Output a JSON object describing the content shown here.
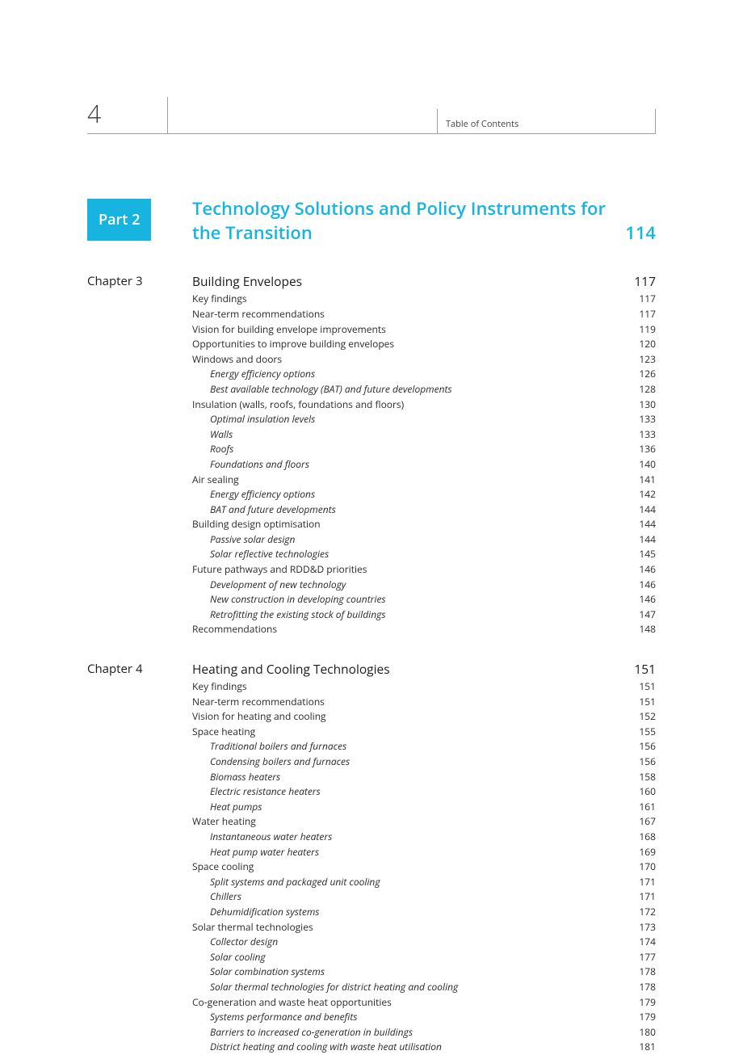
{
  "header": {
    "page_number": "4",
    "label": "Table of Contents"
  },
  "part": {
    "badge": "Part 2",
    "title": "Technology Solutions and Policy Instruments for the Transition",
    "page": "114"
  },
  "chapters": [
    {
      "label": "Chapter 3",
      "title": "Building Envelopes",
      "page": "117",
      "entries": [
        {
          "lvl": 0,
          "label": "Key findings",
          "page": "117"
        },
        {
          "lvl": 0,
          "label": "Near-term recommendations",
          "page": "117"
        },
        {
          "lvl": 0,
          "label": "Vision for building envelope improvements",
          "page": "119"
        },
        {
          "lvl": 0,
          "label": "Opportunities to improve building envelopes",
          "page": "120"
        },
        {
          "lvl": 0,
          "label": "Windows and doors",
          "page": "123"
        },
        {
          "lvl": 1,
          "label": "Energy efficiency options",
          "page": "126"
        },
        {
          "lvl": 1,
          "label": "Best available technology (BAT) and future developments",
          "page": "128"
        },
        {
          "lvl": 0,
          "label": "Insulation (walls, roofs, foundations and floors)",
          "page": "130"
        },
        {
          "lvl": 1,
          "label": "Optimal insulation levels",
          "page": "133"
        },
        {
          "lvl": 1,
          "label": "Walls",
          "page": "133"
        },
        {
          "lvl": 1,
          "label": "Roofs",
          "page": "136"
        },
        {
          "lvl": 1,
          "label": "Foundations and floors",
          "page": "140"
        },
        {
          "lvl": 0,
          "label": "Air sealing",
          "page": "141"
        },
        {
          "lvl": 1,
          "label": "Energy efficiency options",
          "page": "142"
        },
        {
          "lvl": 1,
          "label": "BAT and future developments",
          "page": "144"
        },
        {
          "lvl": 0,
          "label": "Building design optimisation",
          "page": "144"
        },
        {
          "lvl": 1,
          "label": "Passive solar design",
          "page": "144"
        },
        {
          "lvl": 1,
          "label": "Solar reflective technologies",
          "page": "145"
        },
        {
          "lvl": 0,
          "label": "Future pathways and RDD&D priorities",
          "page": "146"
        },
        {
          "lvl": 1,
          "label": "Development of new technology",
          "page": "146"
        },
        {
          "lvl": 1,
          "label": "New construction in developing countries",
          "page": "146"
        },
        {
          "lvl": 1,
          "label": "Retrofitting the existing stock of buildings",
          "page": "147"
        },
        {
          "lvl": 0,
          "label": "Recommendations",
          "page": "148"
        }
      ]
    },
    {
      "label": "Chapter 4",
      "title": "Heating and Cooling Technologies",
      "page": "151",
      "entries": [
        {
          "lvl": 0,
          "label": "Key findings",
          "page": "151"
        },
        {
          "lvl": 0,
          "label": "Near-term recommendations",
          "page": "151"
        },
        {
          "lvl": 0,
          "label": "Vision for heating and cooling",
          "page": "152"
        },
        {
          "lvl": 0,
          "label": "Space heating",
          "page": "155"
        },
        {
          "lvl": 1,
          "label": "Traditional boilers and furnaces",
          "page": "156"
        },
        {
          "lvl": 1,
          "label": "Condensing boilers and furnaces",
          "page": "156"
        },
        {
          "lvl": 1,
          "label": "Biomass heaters",
          "page": "158"
        },
        {
          "lvl": 1,
          "label": "Electric resistance heaters",
          "page": "160"
        },
        {
          "lvl": 1,
          "label": "Heat pumps",
          "page": "161"
        },
        {
          "lvl": 0,
          "label": "Water heating",
          "page": "167"
        },
        {
          "lvl": 1,
          "label": "Instantaneous water heaters",
          "page": "168"
        },
        {
          "lvl": 1,
          "label": "Heat pump water heaters",
          "page": "169"
        },
        {
          "lvl": 0,
          "label": "Space cooling",
          "page": "170"
        },
        {
          "lvl": 1,
          "label": "Split systems and packaged unit cooling",
          "page": "171"
        },
        {
          "lvl": 1,
          "label": "Chillers",
          "page": "171"
        },
        {
          "lvl": 1,
          "label": "Dehumidification systems",
          "page": "172"
        },
        {
          "lvl": 0,
          "label": "Solar thermal technologies",
          "page": "173"
        },
        {
          "lvl": 1,
          "label": "Collector design",
          "page": "174"
        },
        {
          "lvl": 1,
          "label": "Solar cooling",
          "page": "177"
        },
        {
          "lvl": 1,
          "label": "Solar combination systems",
          "page": "178"
        },
        {
          "lvl": 1,
          "label": "Solar thermal technologies for district heating and cooling",
          "page": "178"
        },
        {
          "lvl": 0,
          "label": "Co-generation and waste heat opportunities",
          "page": "179"
        },
        {
          "lvl": 1,
          "label": "Systems performance and benefits",
          "page": "179"
        },
        {
          "lvl": 1,
          "label": "Barriers to increased co-generation in buildings",
          "page": "180"
        },
        {
          "lvl": 1,
          "label": "District heating and cooling with waste heat utilisation",
          "page": "181"
        }
      ]
    }
  ]
}
